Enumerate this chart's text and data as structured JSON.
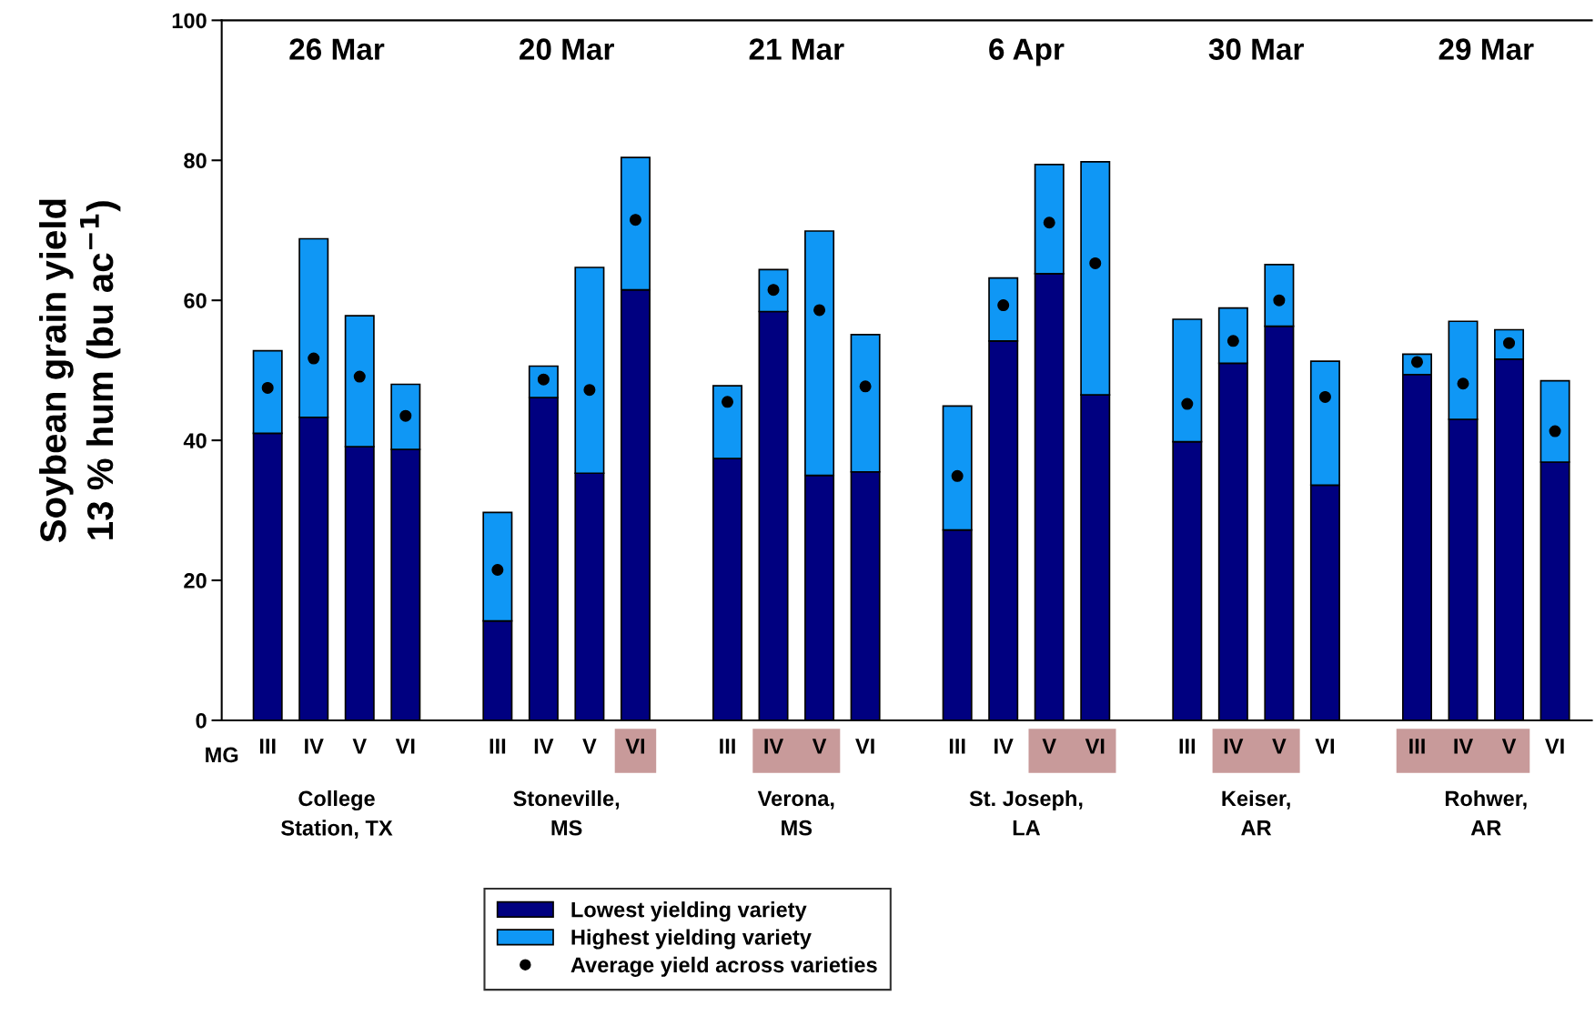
{
  "chart_data": {
    "type": "bar",
    "stacked": true,
    "ylabel": "Soybean grain yield\n13 % hum (bu ac$^{−1}$)",
    "xlabel": "MG",
    "categories": [
      "III",
      "IV",
      "V",
      "VI",
      null,
      "III",
      "IV",
      "V",
      "VI",
      null,
      "III",
      "IV",
      "V",
      "VI",
      null,
      "III",
      "IV",
      "V",
      "VI",
      null,
      "III",
      "IV",
      "V",
      "VI",
      null,
      "III",
      "IV",
      "V",
      "VI"
    ],
    "series": [
      {
        "name": "Lowest yielding variety",
        "color": "#000080",
        "values": [
          41.0,
          43.3,
          39.1,
          38.7,
          null,
          14.2,
          46.1,
          35.3,
          61.5,
          null,
          37.4,
          58.4,
          35.0,
          35.5,
          null,
          27.2,
          54.2,
          63.8,
          46.5,
          null,
          39.8,
          51.0,
          56.3,
          33.6,
          null,
          49.4,
          43.0,
          51.6,
          36.9
        ]
      },
      {
        "name": "Highest yielding variety",
        "color": "#0f97f5",
        "values": [
          11.8,
          25.5,
          18.7,
          9.3,
          null,
          15.5,
          4.5,
          29.4,
          18.9,
          null,
          10.4,
          6.0,
          34.9,
          19.6,
          null,
          17.7,
          9.0,
          15.6,
          33.3,
          null,
          17.5,
          7.9,
          8.8,
          17.7,
          null,
          2.9,
          14.0,
          4.2,
          11.6
        ]
      },
      {
        "name": "Average yield across varieties",
        "type": "scatter",
        "color": "#000000",
        "values": [
          47.5,
          51.7,
          49.1,
          43.5,
          null,
          21.5,
          48.7,
          47.2,
          71.5,
          null,
          45.5,
          61.5,
          58.6,
          47.7,
          null,
          34.9,
          59.3,
          71.1,
          65.3,
          null,
          45.2,
          54.2,
          60.0,
          46.2,
          null,
          51.2,
          48.1,
          53.9,
          41.3
        ]
      }
    ],
    "annotations": [
      "26 Mar",
      "20 Mar",
      "21 Mar",
      "6 Apr",
      "30 Mar",
      "29 Mar",
      "College\nStation, TX",
      "Stoneville,\nMS",
      "Verona,\nMS",
      "St. Joseph,\nLA",
      "Keiser,\nAR",
      "Rohwer,\nAR"
    ],
    "ylim": [
      0,
      100
    ],
    "yticks": [
      0,
      20,
      40,
      60,
      80,
      100
    ],
    "grid": false,
    "legend": "bottom",
    "marker": "circle"
  }
}
